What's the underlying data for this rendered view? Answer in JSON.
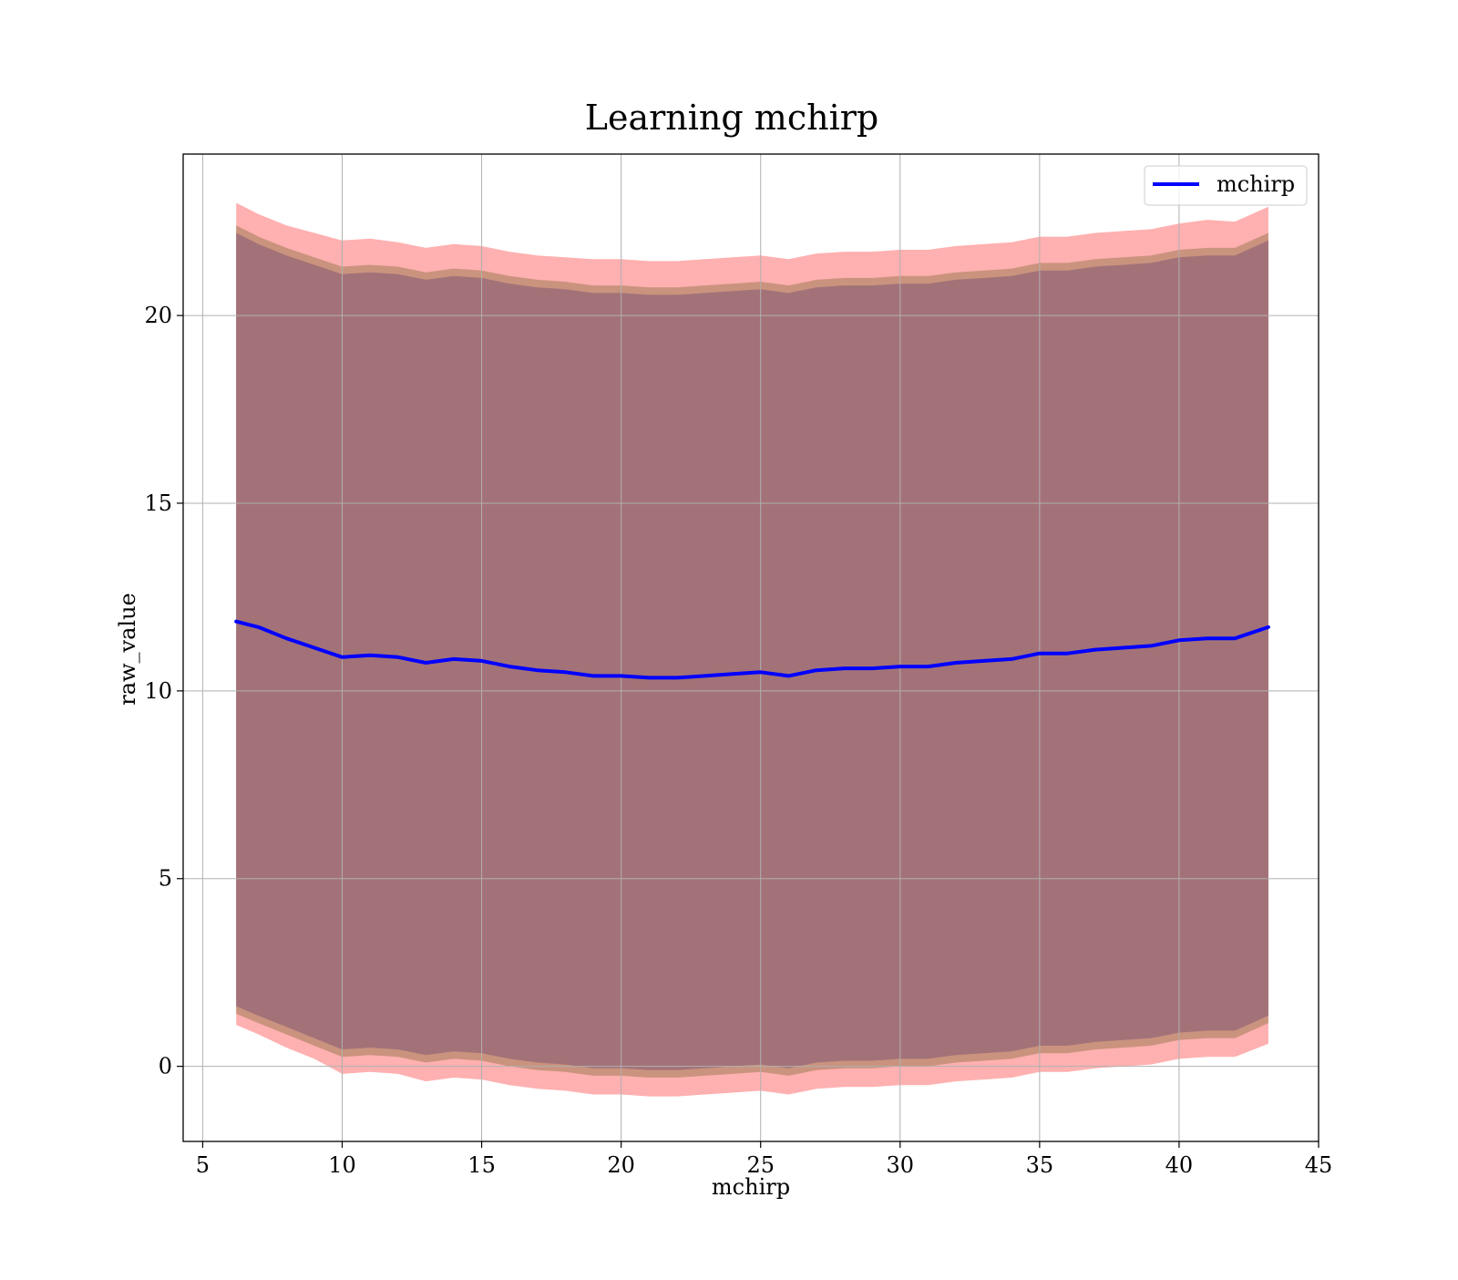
{
  "chart_data": {
    "type": "area",
    "title": "Learning mchirp",
    "xlabel": "mchirp",
    "ylabel": "raw_value",
    "xlim": [
      4.3,
      45
    ],
    "ylim": [
      -2,
      24.3
    ],
    "xticks": [
      5,
      10,
      15,
      20,
      25,
      30,
      35,
      40,
      45
    ],
    "yticks": [
      0,
      5,
      10,
      15,
      20
    ],
    "grid": true,
    "legend": {
      "position": "top-right",
      "entries": [
        "mchirp"
      ]
    },
    "colors": {
      "line": "#0000ff",
      "outer_band": "#ff7f7f",
      "middle_band": "#b88a6e",
      "inner_band": "#a07078"
    },
    "x": [
      6.2,
      7,
      8,
      9,
      10,
      11,
      12,
      13,
      14,
      15,
      16,
      17,
      18,
      19,
      20,
      21,
      22,
      23,
      24,
      25,
      26,
      27,
      28,
      29,
      30,
      31,
      32,
      33,
      34,
      35,
      36,
      37,
      38,
      39,
      40,
      41,
      42,
      43.2
    ],
    "series": [
      {
        "name": "mchirp",
        "values": [
          11.85,
          11.7,
          11.4,
          11.15,
          10.9,
          10.95,
          10.9,
          10.75,
          10.85,
          10.8,
          10.65,
          10.55,
          10.5,
          10.4,
          10.4,
          10.35,
          10.35,
          10.4,
          10.45,
          10.5,
          10.4,
          10.55,
          10.6,
          10.6,
          10.65,
          10.65,
          10.75,
          10.8,
          10.85,
          11.0,
          11.0,
          11.1,
          11.15,
          11.2,
          11.35,
          11.4,
          11.4,
          11.7
        ]
      }
    ],
    "bands": [
      {
        "level": "outer",
        "upper": [
          23.0,
          22.7,
          22.4,
          22.2,
          22.0,
          22.05,
          21.95,
          21.8,
          21.9,
          21.85,
          21.7,
          21.6,
          21.55,
          21.5,
          21.5,
          21.45,
          21.45,
          21.5,
          21.55,
          21.6,
          21.5,
          21.65,
          21.7,
          21.7,
          21.75,
          21.75,
          21.85,
          21.9,
          21.95,
          22.1,
          22.1,
          22.2,
          22.25,
          22.3,
          22.45,
          22.55,
          22.5,
          22.9
        ],
        "lower": [
          1.1,
          0.85,
          0.5,
          0.2,
          -0.2,
          -0.15,
          -0.2,
          -0.4,
          -0.3,
          -0.35,
          -0.5,
          -0.6,
          -0.65,
          -0.75,
          -0.75,
          -0.8,
          -0.8,
          -0.75,
          -0.7,
          -0.65,
          -0.75,
          -0.6,
          -0.55,
          -0.55,
          -0.5,
          -0.5,
          -0.4,
          -0.35,
          -0.3,
          -0.15,
          -0.15,
          -0.05,
          0.0,
          0.05,
          0.2,
          0.25,
          0.25,
          0.6
        ]
      },
      {
        "level": "middle",
        "upper": [
          22.4,
          22.1,
          21.8,
          21.55,
          21.3,
          21.35,
          21.3,
          21.15,
          21.25,
          21.2,
          21.05,
          20.95,
          20.9,
          20.8,
          20.8,
          20.75,
          20.75,
          20.8,
          20.85,
          20.9,
          20.8,
          20.95,
          21.0,
          21.0,
          21.05,
          21.05,
          21.15,
          21.2,
          21.25,
          21.4,
          21.4,
          21.5,
          21.55,
          21.6,
          21.75,
          21.8,
          21.8,
          22.2
        ],
        "lower": [
          1.4,
          1.15,
          0.85,
          0.55,
          0.25,
          0.3,
          0.25,
          0.1,
          0.2,
          0.15,
          0.0,
          -0.1,
          -0.15,
          -0.25,
          -0.25,
          -0.3,
          -0.3,
          -0.25,
          -0.2,
          -0.15,
          -0.25,
          -0.1,
          -0.05,
          -0.05,
          0.0,
          0.0,
          0.1,
          0.15,
          0.2,
          0.35,
          0.35,
          0.45,
          0.5,
          0.55,
          0.7,
          0.75,
          0.75,
          1.15
        ]
      },
      {
        "level": "inner",
        "upper": [
          22.2,
          21.9,
          21.6,
          21.35,
          21.1,
          21.15,
          21.1,
          20.95,
          21.05,
          21.0,
          20.85,
          20.75,
          20.7,
          20.6,
          20.6,
          20.55,
          20.55,
          20.6,
          20.65,
          20.7,
          20.6,
          20.75,
          20.8,
          20.8,
          20.85,
          20.85,
          20.95,
          21.0,
          21.05,
          21.2,
          21.2,
          21.3,
          21.35,
          21.4,
          21.55,
          21.6,
          21.6,
          22.0
        ],
        "lower": [
          1.6,
          1.35,
          1.05,
          0.75,
          0.45,
          0.5,
          0.45,
          0.3,
          0.4,
          0.35,
          0.2,
          0.1,
          0.05,
          -0.05,
          -0.05,
          -0.1,
          -0.1,
          -0.05,
          0.0,
          0.05,
          -0.05,
          0.1,
          0.15,
          0.15,
          0.2,
          0.2,
          0.3,
          0.35,
          0.4,
          0.55,
          0.55,
          0.65,
          0.7,
          0.75,
          0.9,
          0.95,
          0.95,
          1.35
        ]
      }
    ]
  }
}
